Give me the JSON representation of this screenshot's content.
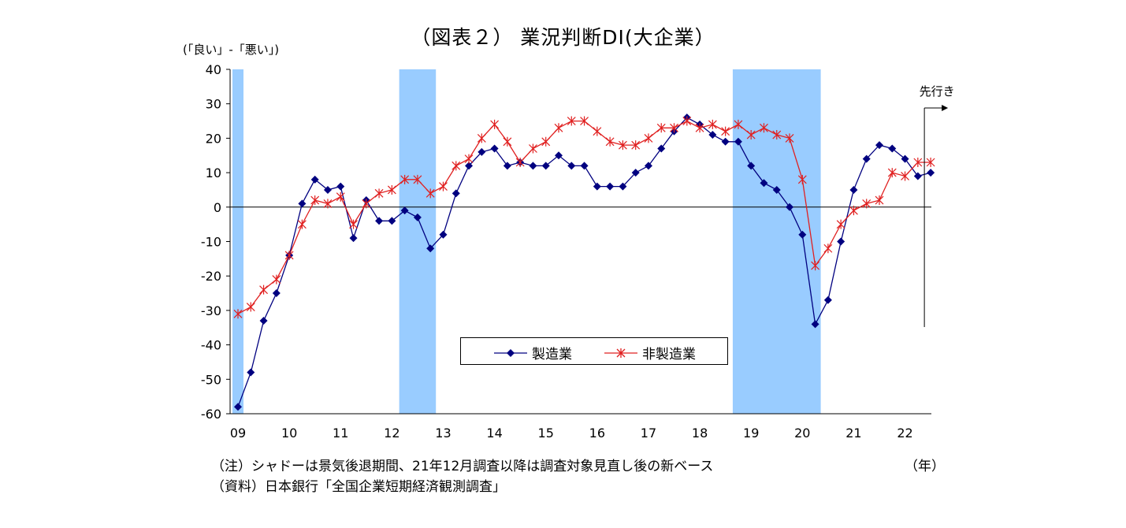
{
  "chart_data": {
    "type": "line",
    "title": "（図表２） 業況判断DI(大企業）",
    "ylabel": "(「良い」-「悪い」)",
    "xunit": "（年）",
    "ylim": [
      -60,
      40
    ],
    "yticks": [
      40,
      30,
      20,
      10,
      0,
      -10,
      -20,
      -30,
      -40,
      -50,
      -60
    ],
    "xtick_labels": [
      "09",
      "10",
      "11",
      "12",
      "13",
      "14",
      "15",
      "16",
      "17",
      "18",
      "19",
      "20",
      "21",
      "22"
    ],
    "x_start": "2009Q1",
    "forecast_label": "先行き",
    "shaded_periods": [
      {
        "from": "2009Q1",
        "to": "2009Q1"
      },
      {
        "from": "2012Q2",
        "to": "2012Q4"
      },
      {
        "from": "2018Q4",
        "to": "2020Q2"
      }
    ],
    "legend_position": "lower-center",
    "series": [
      {
        "name": "製造業",
        "color": "#000080",
        "marker": "diamond",
        "values": [
          -58,
          -48,
          -33,
          -25,
          -14,
          1,
          8,
          5,
          6,
          -9,
          2,
          -4,
          -4,
          -1,
          -3,
          -12,
          -8,
          4,
          12,
          16,
          17,
          12,
          13,
          12,
          12,
          15,
          12,
          12,
          6,
          6,
          6,
          10,
          12,
          17,
          22,
          26,
          24,
          21,
          19,
          19,
          12,
          7,
          5,
          0,
          -8,
          -34,
          -27,
          -10,
          5,
          14,
          18,
          17,
          14,
          9,
          10
        ]
      },
      {
        "name": "非製造業",
        "color": "#e02020",
        "marker": "asterisk",
        "values": [
          -31,
          -29,
          -24,
          -21,
          -14,
          -5,
          2,
          1,
          3,
          -5,
          1,
          4,
          5,
          8,
          8,
          4,
          6,
          12,
          14,
          20,
          24,
          19,
          13,
          17,
          19,
          23,
          25,
          25,
          22,
          19,
          18,
          18,
          20,
          23,
          23,
          25,
          23,
          24,
          22,
          24,
          21,
          23,
          21,
          20,
          8,
          -17,
          -12,
          -5,
          -1,
          1,
          2,
          10,
          9,
          13,
          13
        ]
      }
    ]
  },
  "notes": {
    "shadow": "（注）シャドーは景気後退期間、21年12月調査以降は調査対象見直し後の新ベース",
    "source": "（資料）日本銀行「全国企業短期経済観測調査」"
  }
}
